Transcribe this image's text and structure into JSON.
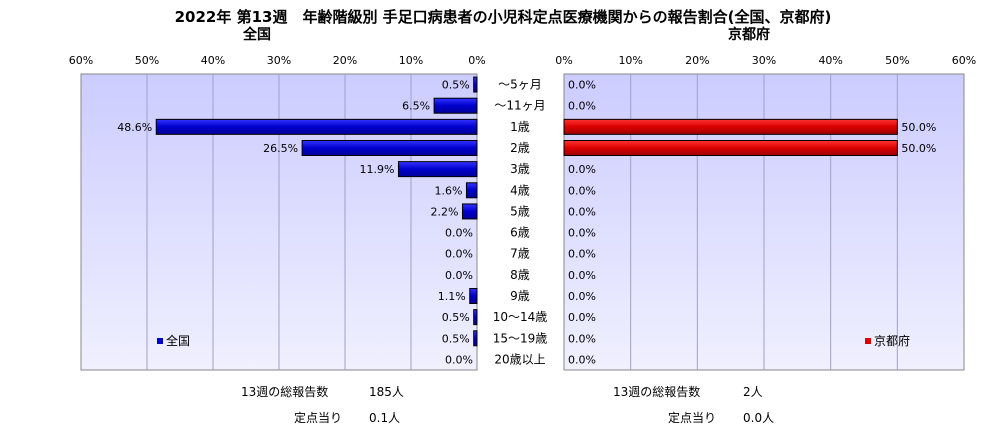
{
  "title": "2022年 第13週　年齢階級別 手足口病患者の小児科定点医療機関からの報告割合(全国、京都府)",
  "subtitle_left": "全国",
  "subtitle_right": "京都府",
  "colors": {
    "national": "#0000cc",
    "kyoto": "#dd0000",
    "plot_bg_top": "#ccccff",
    "plot_bg_bottom": "#f0f0ff"
  },
  "chart_data": [
    {
      "type": "bar",
      "orientation": "horizontal",
      "direction": "right-to-left",
      "title": "全国",
      "categories": [
        "〜5ヶ月",
        "〜11ヶ月",
        "1歳",
        "2歳",
        "3歳",
        "4歳",
        "5歳",
        "6歳",
        "7歳",
        "8歳",
        "9歳",
        "10〜14歳",
        "15〜19歳",
        "20歳以上"
      ],
      "series": [
        {
          "name": "全国",
          "values": [
            0.5,
            6.5,
            48.6,
            26.5,
            11.9,
            1.6,
            2.2,
            0.0,
            0.0,
            0.0,
            1.1,
            0.5,
            0.5,
            0.0
          ]
        }
      ],
      "data_labels": [
        "0.5%",
        "6.5%",
        "48.6%",
        "26.5%",
        "11.9%",
        "1.6%",
        "2.2%",
        "0.0%",
        "0.0%",
        "0.0%",
        "1.1%",
        "0.5%",
        "0.5%",
        "0.0%"
      ],
      "xlim": [
        0,
        60
      ],
      "tick_labels": [
        "0%",
        "10%",
        "20%",
        "30%",
        "40%",
        "50%",
        "60%"
      ],
      "legend": "bottom-left",
      "grid": true
    },
    {
      "type": "bar",
      "orientation": "horizontal",
      "direction": "left-to-right",
      "title": "京都府",
      "categories": [
        "〜5ヶ月",
        "〜11ヶ月",
        "1歳",
        "2歳",
        "3歳",
        "4歳",
        "5歳",
        "6歳",
        "7歳",
        "8歳",
        "9歳",
        "10〜14歳",
        "15〜19歳",
        "20歳以上"
      ],
      "series": [
        {
          "name": "京都府",
          "values": [
            0.0,
            0.0,
            50.0,
            50.0,
            0.0,
            0.0,
            0.0,
            0.0,
            0.0,
            0.0,
            0.0,
            0.0,
            0.0,
            0.0
          ]
        }
      ],
      "data_labels": [
        "0.0%",
        "0.0%",
        "50.0%",
        "50.0%",
        "0.0%",
        "0.0%",
        "0.0%",
        "0.0%",
        "0.0%",
        "0.0%",
        "0.0%",
        "0.0%",
        "0.0%",
        "0.0%"
      ],
      "xlim": [
        0,
        60
      ],
      "tick_labels": [
        "0%",
        "10%",
        "20%",
        "30%",
        "40%",
        "50%",
        "60%"
      ],
      "legend": "bottom-right",
      "grid": true
    }
  ],
  "info_left": {
    "total_label": "13週の総報告数",
    "total_value": "185人",
    "per_label": "定点当り",
    "per_value": "0.1人"
  },
  "info_right": {
    "total_label": "13週の総報告数",
    "total_value": "2人",
    "per_label": "定点当り",
    "per_value": "0.0人"
  }
}
